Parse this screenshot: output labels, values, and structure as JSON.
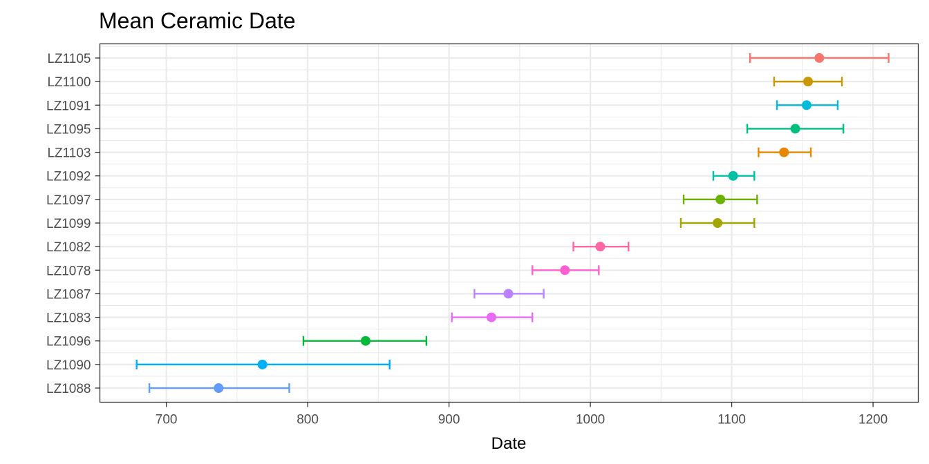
{
  "chart_data": {
    "type": "scatter",
    "title": "Mean Ceramic Date",
    "xlabel": "Date",
    "ylabel": "",
    "xlim": [
      653,
      1232
    ],
    "x_ticks": [
      700,
      800,
      900,
      1000,
      1100,
      1200
    ],
    "x_minor_ticks": [
      750,
      850,
      950,
      1050,
      1150
    ],
    "grid": true,
    "legend": "none",
    "error_bars": true,
    "categories": [
      "LZ1088",
      "LZ1090",
      "LZ1096",
      "LZ1083",
      "LZ1087",
      "LZ1078",
      "LZ1082",
      "LZ1099",
      "LZ1097",
      "LZ1092",
      "LZ1103",
      "LZ1095",
      "LZ1091",
      "LZ1100",
      "LZ1105"
    ],
    "points": [
      {
        "site": "LZ1088",
        "mean": 737,
        "low": 688,
        "high": 787,
        "color": "#619CFF"
      },
      {
        "site": "LZ1090",
        "mean": 768,
        "low": 679,
        "high": 858,
        "color": "#00B0F6"
      },
      {
        "site": "LZ1096",
        "mean": 841,
        "low": 797,
        "high": 884,
        "color": "#00BA38"
      },
      {
        "site": "LZ1083",
        "mean": 930,
        "low": 902,
        "high": 959,
        "color": "#E76BF3"
      },
      {
        "site": "LZ1087",
        "mean": 942,
        "low": 918,
        "high": 967,
        "color": "#B983FF"
      },
      {
        "site": "LZ1078",
        "mean": 982,
        "low": 959,
        "high": 1006,
        "color": "#FD61D1"
      },
      {
        "site": "LZ1082",
        "mean": 1007,
        "low": 988,
        "high": 1027,
        "color": "#FF67A4"
      },
      {
        "site": "LZ1099",
        "mean": 1090,
        "low": 1064,
        "high": 1116,
        "color": "#A3A500"
      },
      {
        "site": "LZ1097",
        "mean": 1092,
        "low": 1066,
        "high": 1118,
        "color": "#6BB100"
      },
      {
        "site": "LZ1092",
        "mean": 1101,
        "low": 1087,
        "high": 1116,
        "color": "#00C1A3"
      },
      {
        "site": "LZ1103",
        "mean": 1137,
        "low": 1119,
        "high": 1156,
        "color": "#E58700"
      },
      {
        "site": "LZ1095",
        "mean": 1145,
        "low": 1111,
        "high": 1179,
        "color": "#00BF7D"
      },
      {
        "site": "LZ1091",
        "mean": 1153,
        "low": 1132,
        "high": 1175,
        "color": "#00BCD8"
      },
      {
        "site": "LZ1100",
        "mean": 1154,
        "low": 1130,
        "high": 1178,
        "color": "#C99800"
      },
      {
        "site": "LZ1105",
        "mean": 1162,
        "low": 1113,
        "high": 1211,
        "color": "#F8766D"
      }
    ]
  }
}
